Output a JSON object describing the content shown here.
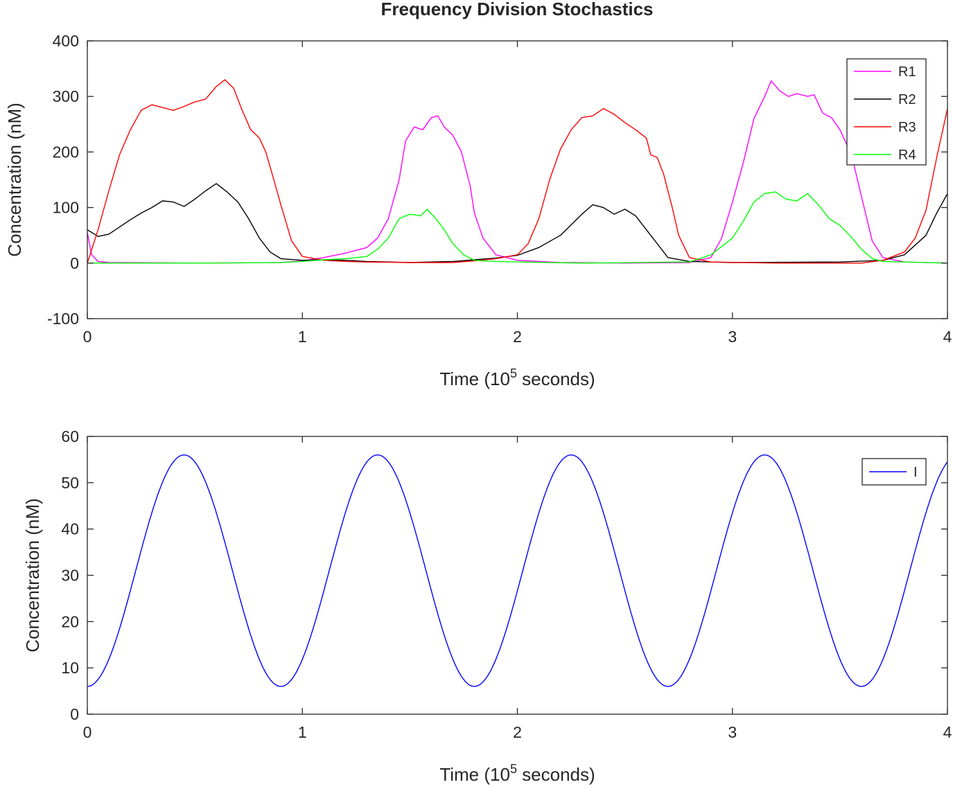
{
  "figure": {
    "title": "Frequency Division Stochastics"
  },
  "chart_data": [
    {
      "type": "line",
      "title": "Frequency Division Stochastics",
      "xlabel": "Time (10^5 seconds)",
      "xlabel_parts": {
        "before": "Time (10",
        "superscript": "5",
        "after": " seconds)"
      },
      "ylabel": "Concentration (nM)",
      "xlim": [
        0,
        4
      ],
      "ylim": [
        -100,
        400
      ],
      "xticks": [
        0,
        1,
        2,
        3,
        4
      ],
      "yticks": [
        -100,
        0,
        100,
        200,
        300,
        400
      ],
      "grid": false,
      "legend_position": "top-right",
      "series": [
        {
          "name": "R1",
          "color": "#ff00ff",
          "points": [
            [
              0,
              55
            ],
            [
              0.02,
              15
            ],
            [
              0.05,
              3
            ],
            [
              0.1,
              1
            ],
            [
              0.5,
              0
            ],
            [
              0.9,
              1
            ],
            [
              1.0,
              4
            ],
            [
              1.1,
              10
            ],
            [
              1.2,
              18
            ],
            [
              1.3,
              28
            ],
            [
              1.35,
              45
            ],
            [
              1.4,
              80
            ],
            [
              1.45,
              150
            ],
            [
              1.48,
              220
            ],
            [
              1.52,
              245
            ],
            [
              1.56,
              240
            ],
            [
              1.6,
              262
            ],
            [
              1.63,
              265
            ],
            [
              1.66,
              245
            ],
            [
              1.7,
              230
            ],
            [
              1.74,
              200
            ],
            [
              1.78,
              140
            ],
            [
              1.8,
              90
            ],
            [
              1.84,
              45
            ],
            [
              1.9,
              15
            ],
            [
              2.0,
              5
            ],
            [
              2.2,
              1
            ],
            [
              2.5,
              0
            ],
            [
              2.8,
              1
            ],
            [
              2.9,
              10
            ],
            [
              2.95,
              45
            ],
            [
              3.0,
              110
            ],
            [
              3.05,
              180
            ],
            [
              3.1,
              260
            ],
            [
              3.15,
              300
            ],
            [
              3.18,
              328
            ],
            [
              3.22,
              310
            ],
            [
              3.26,
              300
            ],
            [
              3.3,
              305
            ],
            [
              3.35,
              300
            ],
            [
              3.38,
              303
            ],
            [
              3.42,
              270
            ],
            [
              3.46,
              262
            ],
            [
              3.5,
              240
            ],
            [
              3.53,
              215
            ],
            [
              3.56,
              185
            ],
            [
              3.6,
              120
            ],
            [
              3.65,
              40
            ],
            [
              3.7,
              10
            ],
            [
              3.8,
              2
            ],
            [
              4.0,
              0
            ]
          ]
        },
        {
          "name": "R2",
          "color": "#000000",
          "points": [
            [
              0,
              60
            ],
            [
              0.05,
              48
            ],
            [
              0.1,
              52
            ],
            [
              0.15,
              65
            ],
            [
              0.2,
              78
            ],
            [
              0.25,
              90
            ],
            [
              0.3,
              100
            ],
            [
              0.35,
              112
            ],
            [
              0.4,
              110
            ],
            [
              0.45,
              102
            ],
            [
              0.5,
              115
            ],
            [
              0.55,
              130
            ],
            [
              0.6,
              143
            ],
            [
              0.65,
              128
            ],
            [
              0.7,
              110
            ],
            [
              0.75,
              80
            ],
            [
              0.8,
              45
            ],
            [
              0.85,
              20
            ],
            [
              0.9,
              8
            ],
            [
              1.0,
              5
            ],
            [
              1.1,
              6
            ],
            [
              1.2,
              5
            ],
            [
              1.3,
              3
            ],
            [
              1.5,
              1
            ],
            [
              1.7,
              3
            ],
            [
              1.8,
              6
            ],
            [
              1.9,
              9
            ],
            [
              2.0,
              14
            ],
            [
              2.1,
              28
            ],
            [
              2.2,
              50
            ],
            [
              2.3,
              88
            ],
            [
              2.35,
              105
            ],
            [
              2.4,
              100
            ],
            [
              2.45,
              88
            ],
            [
              2.5,
              97
            ],
            [
              2.55,
              85
            ],
            [
              2.6,
              60
            ],
            [
              2.65,
              35
            ],
            [
              2.7,
              10
            ],
            [
              2.8,
              3
            ],
            [
              3.0,
              1
            ],
            [
              3.5,
              2
            ],
            [
              3.7,
              5
            ],
            [
              3.8,
              15
            ],
            [
              3.9,
              50
            ],
            [
              3.95,
              90
            ],
            [
              4.0,
              125
            ]
          ]
        },
        {
          "name": "R3",
          "color": "#ff0000",
          "points": [
            [
              0,
              0
            ],
            [
              0.05,
              60
            ],
            [
              0.1,
              130
            ],
            [
              0.15,
              195
            ],
            [
              0.2,
              240
            ],
            [
              0.25,
              275
            ],
            [
              0.3,
              285
            ],
            [
              0.35,
              280
            ],
            [
              0.4,
              275
            ],
            [
              0.45,
              282
            ],
            [
              0.5,
              290
            ],
            [
              0.55,
              295
            ],
            [
              0.6,
              318
            ],
            [
              0.64,
              330
            ],
            [
              0.68,
              315
            ],
            [
              0.72,
              275
            ],
            [
              0.76,
              240
            ],
            [
              0.8,
              225
            ],
            [
              0.83,
              200
            ],
            [
              0.86,
              160
            ],
            [
              0.9,
              105
            ],
            [
              0.95,
              40
            ],
            [
              1.0,
              12
            ],
            [
              1.1,
              5
            ],
            [
              1.2,
              3
            ],
            [
              1.3,
              2
            ],
            [
              1.5,
              1
            ],
            [
              1.7,
              1
            ],
            [
              1.8,
              4
            ],
            [
              1.9,
              8
            ],
            [
              2.0,
              15
            ],
            [
              2.05,
              35
            ],
            [
              2.1,
              80
            ],
            [
              2.15,
              150
            ],
            [
              2.2,
              205
            ],
            [
              2.25,
              240
            ],
            [
              2.3,
              262
            ],
            [
              2.35,
              265
            ],
            [
              2.4,
              278
            ],
            [
              2.45,
              268
            ],
            [
              2.5,
              253
            ],
            [
              2.55,
              240
            ],
            [
              2.6,
              225
            ],
            [
              2.62,
              195
            ],
            [
              2.65,
              190
            ],
            [
              2.68,
              160
            ],
            [
              2.72,
              100
            ],
            [
              2.75,
              50
            ],
            [
              2.8,
              10
            ],
            [
              2.9,
              2
            ],
            [
              3.2,
              0
            ],
            [
              3.6,
              0
            ],
            [
              3.7,
              5
            ],
            [
              3.8,
              20
            ],
            [
              3.85,
              45
            ],
            [
              3.9,
              95
            ],
            [
              3.95,
              190
            ],
            [
              4.0,
              278
            ]
          ]
        },
        {
          "name": "R4",
          "color": "#00ff00",
          "points": [
            [
              0,
              0
            ],
            [
              0.5,
              0
            ],
            [
              0.9,
              1
            ],
            [
              1.0,
              3
            ],
            [
              1.1,
              6
            ],
            [
              1.2,
              8
            ],
            [
              1.3,
              12
            ],
            [
              1.35,
              25
            ],
            [
              1.4,
              45
            ],
            [
              1.45,
              80
            ],
            [
              1.5,
              88
            ],
            [
              1.55,
              85
            ],
            [
              1.58,
              97
            ],
            [
              1.62,
              80
            ],
            [
              1.66,
              60
            ],
            [
              1.7,
              35
            ],
            [
              1.75,
              15
            ],
            [
              1.8,
              5
            ],
            [
              1.9,
              3
            ],
            [
              2.0,
              2
            ],
            [
              2.3,
              0
            ],
            [
              2.8,
              2
            ],
            [
              2.9,
              15
            ],
            [
              3.0,
              45
            ],
            [
              3.05,
              75
            ],
            [
              3.1,
              110
            ],
            [
              3.15,
              125
            ],
            [
              3.2,
              128
            ],
            [
              3.25,
              115
            ],
            [
              3.3,
              112
            ],
            [
              3.35,
              125
            ],
            [
              3.4,
              105
            ],
            [
              3.45,
              80
            ],
            [
              3.5,
              68
            ],
            [
              3.55,
              48
            ],
            [
              3.6,
              25
            ],
            [
              3.65,
              8
            ],
            [
              3.7,
              3
            ],
            [
              4.0,
              0
            ]
          ]
        }
      ]
    },
    {
      "type": "line",
      "xlabel": "Time (10^5 seconds)",
      "xlabel_parts": {
        "before": "Time (10",
        "superscript": "5",
        "after": " seconds)"
      },
      "ylabel": "Concentration (nM)",
      "xlim": [
        0,
        4
      ],
      "ylim": [
        0,
        60
      ],
      "xticks": [
        0,
        1,
        2,
        3,
        4
      ],
      "yticks": [
        0,
        10,
        20,
        30,
        40,
        50,
        60
      ],
      "grid": false,
      "legend_position": "top-right",
      "series": [
        {
          "name": "I",
          "color": "#0000ff",
          "form": "sinusoid",
          "mean": 31,
          "amplitude": 25,
          "period": 0.9,
          "first_minimum_at": 0,
          "min": 6,
          "max": 56
        }
      ]
    }
  ]
}
